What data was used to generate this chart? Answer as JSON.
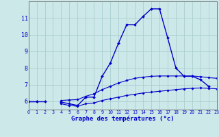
{
  "xlabel": "Graphe des températures (°c)",
  "background_color": "#cce8e8",
  "grid_color": "#aacece",
  "line_color": "#0000cc",
  "hours": [
    0,
    1,
    2,
    3,
    4,
    5,
    6,
    7,
    8,
    9,
    10,
    11,
    12,
    13,
    14,
    15,
    16,
    17,
    18,
    19,
    20,
    21,
    22,
    23
  ],
  "temp": [
    6.0,
    6.0,
    6.0,
    null,
    5.95,
    5.85,
    5.75,
    6.25,
    6.25,
    7.5,
    8.3,
    9.5,
    10.6,
    10.6,
    11.1,
    11.55,
    11.55,
    9.8,
    8.0,
    7.5,
    7.5,
    7.3,
    6.9,
    null
  ],
  "tmin": [
    6.0,
    6.0,
    null,
    null,
    5.85,
    5.75,
    5.7,
    5.85,
    5.9,
    6.05,
    6.15,
    6.25,
    6.35,
    6.42,
    6.5,
    6.55,
    6.6,
    6.65,
    6.7,
    6.75,
    6.78,
    6.8,
    6.78,
    6.75
  ],
  "tmax": [
    6.0,
    6.0,
    null,
    null,
    6.05,
    6.08,
    6.1,
    6.3,
    6.45,
    6.7,
    6.9,
    7.1,
    7.25,
    7.38,
    7.45,
    7.5,
    7.52,
    7.52,
    7.52,
    7.52,
    7.52,
    7.48,
    7.42,
    7.38
  ],
  "ylim": [
    5.5,
    12.0
  ],
  "yticks": [
    6,
    7,
    8,
    9,
    10,
    11
  ],
  "xlim": [
    0,
    23
  ]
}
